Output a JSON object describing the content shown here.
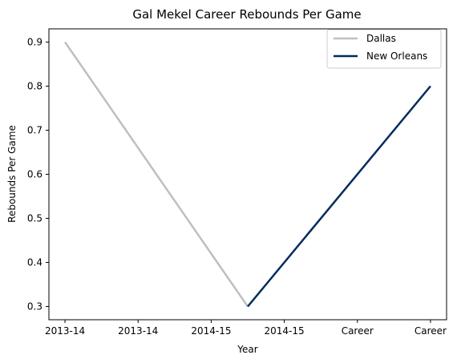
{
  "chart_data": {
    "type": "line",
    "title": "Gal Mekel Career Rebounds Per Game",
    "xlabel": "Year",
    "ylabel": "Rebounds Per Game",
    "x_tick_labels": [
      "2013-14",
      "2013-14",
      "2014-15",
      "2014-15",
      "Career",
      "Career"
    ],
    "ylim": [
      0.27,
      0.93
    ],
    "y_ticks": [
      0.3,
      0.4,
      0.5,
      0.6,
      0.7,
      0.8,
      0.9
    ],
    "grid": false,
    "legend_position": "top-right",
    "series": [
      {
        "name": "Dallas",
        "color": "#bfbfbf",
        "points": [
          {
            "x": 0,
            "y": 0.9
          },
          {
            "x": 2.5,
            "y": 0.3
          }
        ]
      },
      {
        "name": "New Orleans",
        "color": "#002b5c",
        "points": [
          {
            "x": 2.5,
            "y": 0.3
          },
          {
            "x": 5,
            "y": 0.8
          }
        ]
      }
    ]
  }
}
